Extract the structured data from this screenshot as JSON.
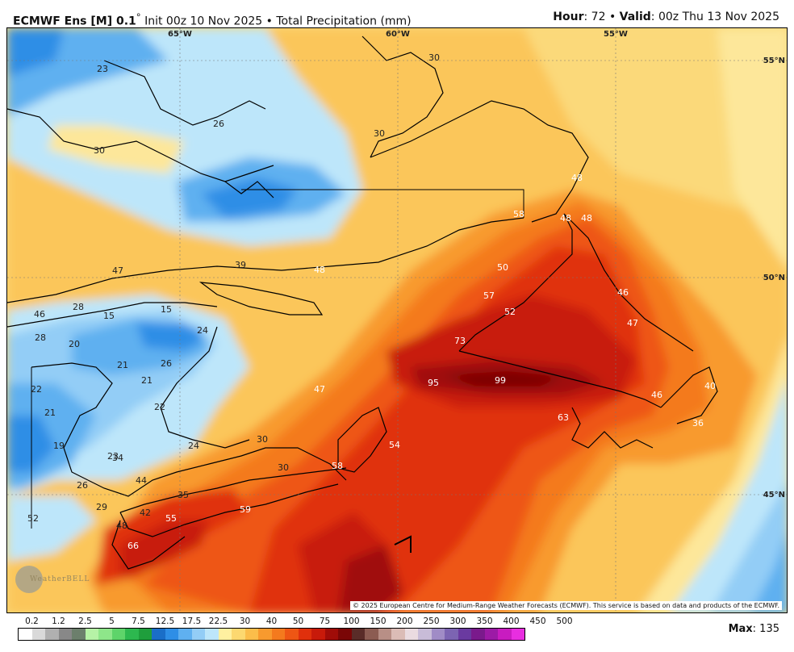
{
  "header": {
    "model": "ECMWF Ens [M] 0.1",
    "degree": "°",
    "init": " Init 00z 10 Nov 2025 • Total Precipitation (mm)",
    "hour_label": "Hour",
    "hour_value": ": 72 • ",
    "valid_label": "Valid",
    "valid_value": ": 00z Thu 13 Nov 2025"
  },
  "map": {
    "lon_labels": [
      "65°W",
      "60°W",
      "55°W"
    ],
    "lat_labels": [
      "55°N",
      "50°N",
      "45°N"
    ],
    "values": [
      "23",
      "26",
      "30",
      "30",
      "48",
      "58",
      "48",
      "48",
      "50",
      "46",
      "47",
      "39",
      "48",
      "57",
      "52",
      "46",
      "47",
      "28",
      "15",
      "15",
      "24",
      "28",
      "20",
      "21",
      "26",
      "73",
      "95",
      "99",
      "22",
      "21",
      "47",
      "22",
      "46",
      "40",
      "63",
      "36",
      "21",
      "19",
      "23",
      "24",
      "34",
      "30",
      "54",
      "58",
      "30",
      "26",
      "44",
      "35",
      "29",
      "52",
      "59",
      "55",
      "48",
      "66",
      "42",
      "30"
    ],
    "copyright": "© 2025 European Centre for Medium-Range Weather Forecasts (ECMWF). This service is based on data and products of the ECMWF.",
    "watermark": "WeatherBELL"
  },
  "colorbar": {
    "ticks": [
      "0.2",
      "1.2",
      "2.5",
      "5",
      "7.5",
      "12.5",
      "17.5",
      "22.5",
      "30",
      "40",
      "50",
      "75",
      "100",
      "150",
      "200",
      "250",
      "300",
      "350",
      "400",
      "450",
      "500"
    ],
    "colors": [
      "#ffffff",
      "#d9d9d9",
      "#b0b0b0",
      "#888888",
      "#6c7f6c",
      "#b6f2a6",
      "#8ee68a",
      "#5ed46a",
      "#2db84f",
      "#1f9e3c",
      "#1a6ec8",
      "#2e8ee6",
      "#5fb0f0",
      "#93cdf6",
      "#bde6fa",
      "#fff0a0",
      "#fcd870",
      "#fbbd4a",
      "#f89a2e",
      "#f47a1e",
      "#ee5614",
      "#e0300c",
      "#c81a0a",
      "#a00c08",
      "#7a0606",
      "#5a2c28",
      "#8c5c52",
      "#b88f86",
      "#dbbcb6",
      "#eadbe0",
      "#c8bcd8",
      "#a08cc6",
      "#7c64b2",
      "#6a3aa0",
      "#7a1a8c",
      "#9c1aa6",
      "#c81cc0",
      "#e82ee0"
    ]
  },
  "max_label": "Max",
  "max_value": ": 135"
}
